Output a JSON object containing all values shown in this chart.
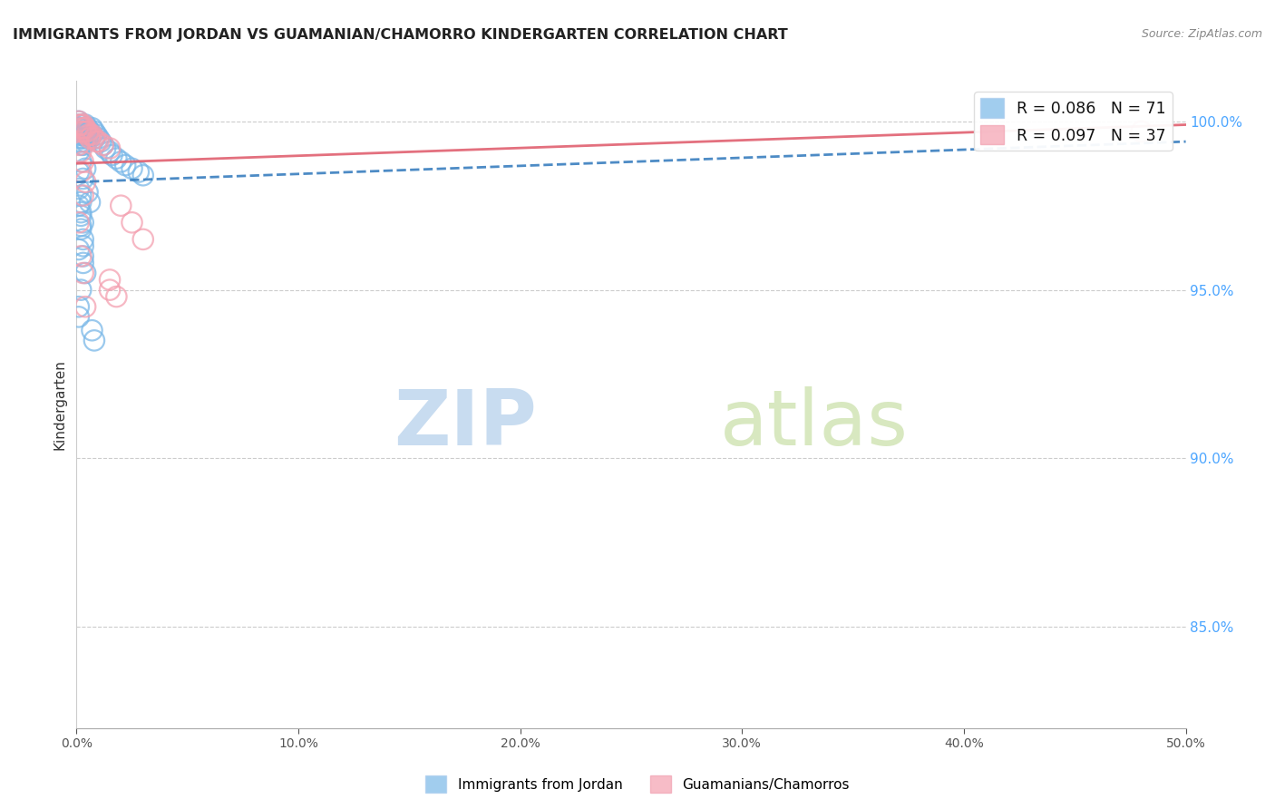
{
  "title": "IMMIGRANTS FROM JORDAN VS GUAMANIAN/CHAMORRO KINDERGARTEN CORRELATION CHART",
  "source": "Source: ZipAtlas.com",
  "ylabel": "Kindergarten",
  "legend_label1": "Immigrants from Jordan",
  "legend_label2": "Guamanians/Chamorros",
  "R1": 0.086,
  "N1": 71,
  "R2": 0.097,
  "N2": 37,
  "blue_color": "#7ab8e8",
  "pink_color": "#f4a0b0",
  "blue_line_color": "#3a7fbf",
  "pink_line_color": "#e06070",
  "right_axis_color": "#4da6ff",
  "x_min": 0.0,
  "x_max": 0.5,
  "y_min": 0.82,
  "y_max": 1.012,
  "blue_x": [
    0.001,
    0.001,
    0.001,
    0.001,
    0.001,
    0.002,
    0.002,
    0.002,
    0.002,
    0.002,
    0.002,
    0.002,
    0.003,
    0.003,
    0.003,
    0.003,
    0.003,
    0.003,
    0.004,
    0.004,
    0.004,
    0.004,
    0.005,
    0.005,
    0.005,
    0.006,
    0.006,
    0.007,
    0.007,
    0.008,
    0.008,
    0.009,
    0.01,
    0.011,
    0.012,
    0.013,
    0.015,
    0.016,
    0.018,
    0.02,
    0.022,
    0.025,
    0.028,
    0.03,
    0.001,
    0.002,
    0.002,
    0.003,
    0.003,
    0.004,
    0.001,
    0.002,
    0.001,
    0.002,
    0.003,
    0.002,
    0.001,
    0.003,
    0.002,
    0.001,
    0.002,
    0.003,
    0.001,
    0.004,
    0.005,
    0.006,
    0.002,
    0.003,
    0.001,
    0.007,
    0.008
  ],
  "blue_y": [
    0.999,
    0.998,
    0.997,
    0.996,
    1.0,
    0.999,
    0.998,
    0.997,
    0.996,
    0.995,
    0.994,
    0.993,
    0.999,
    0.998,
    0.997,
    0.996,
    0.995,
    0.993,
    0.999,
    0.997,
    0.996,
    0.994,
    0.998,
    0.997,
    0.995,
    0.997,
    0.995,
    0.998,
    0.996,
    0.997,
    0.995,
    0.996,
    0.995,
    0.994,
    0.993,
    0.992,
    0.991,
    0.99,
    0.989,
    0.988,
    0.987,
    0.986,
    0.985,
    0.984,
    0.975,
    0.972,
    0.968,
    0.965,
    0.96,
    0.955,
    0.98,
    0.978,
    0.985,
    0.976,
    0.97,
    0.973,
    0.962,
    0.958,
    0.95,
    0.945,
    0.988,
    0.983,
    0.991,
    0.986,
    0.979,
    0.976,
    0.969,
    0.963,
    0.942,
    0.938,
    0.935
  ],
  "pink_x": [
    0.001,
    0.001,
    0.002,
    0.002,
    0.002,
    0.003,
    0.003,
    0.003,
    0.004,
    0.004,
    0.005,
    0.005,
    0.006,
    0.006,
    0.007,
    0.008,
    0.009,
    0.01,
    0.012,
    0.015,
    0.02,
    0.025,
    0.03,
    0.015,
    0.001,
    0.002,
    0.003,
    0.002,
    0.004,
    0.003,
    0.002,
    0.001,
    0.015,
    0.018,
    0.003,
    0.004,
    0.48
  ],
  "pink_y": [
    0.999,
    1.0,
    0.999,
    0.998,
    0.997,
    0.999,
    0.998,
    0.997,
    0.998,
    0.997,
    0.997,
    0.996,
    0.996,
    0.995,
    0.996,
    0.995,
    0.994,
    0.994,
    0.993,
    0.992,
    0.975,
    0.97,
    0.965,
    0.95,
    0.993,
    0.991,
    0.988,
    0.985,
    0.982,
    0.978,
    0.96,
    0.97,
    0.953,
    0.948,
    0.955,
    0.945,
    0.997
  ],
  "blue_trend_x": [
    0.0,
    0.5
  ],
  "blue_trend_y": [
    0.982,
    0.994
  ],
  "pink_trend_x": [
    0.0,
    0.5
  ],
  "pink_trend_y": [
    0.9875,
    0.999
  ],
  "watermark_zip": "ZIP",
  "watermark_atlas": "atlas",
  "watermark_color": "#ddeeff"
}
